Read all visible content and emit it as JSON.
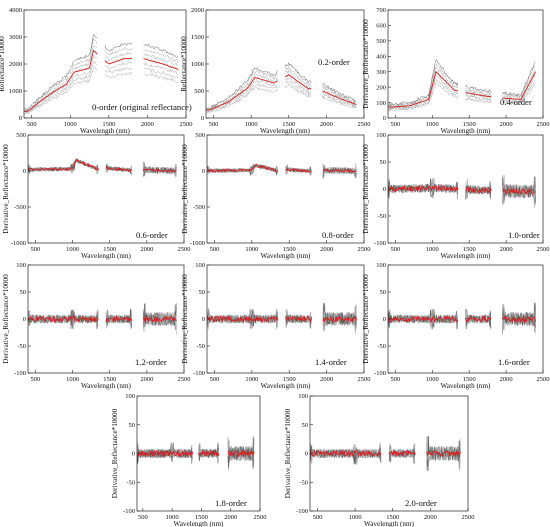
{
  "figure": {
    "panels_count": 11,
    "trace_colors": {
      "samples": "#9a9a9a",
      "mean": "#d62020",
      "dark": "#4a4a4a"
    }
  },
  "chart_data": [
    {
      "type": "line",
      "annotation": "0-order (original reflectance)",
      "xlabel": "Wavelength (nm)",
      "ylabel": "Reflectance*10000",
      "xlim": [
        400,
        2500
      ],
      "ylim": [
        0,
        4000
      ],
      "xticks": [
        "500",
        "1000",
        "1500",
        "2000",
        "2500"
      ],
      "yticks": [
        "0",
        "1000",
        "2000",
        "3000",
        "4000"
      ],
      "segments_nm": [
        [
          400,
          1000
        ],
        [
          1000,
          1350
        ],
        [
          1450,
          1800
        ],
        [
          1950,
          2400
        ]
      ],
      "mean_reflectance": {
        "x": [
          450,
          600,
          800,
          950,
          1050,
          1250,
          1300,
          1500,
          1700,
          1950,
          2200,
          2400
        ],
        "y": [
          250,
          600,
          1000,
          1250,
          1700,
          1850,
          2500,
          2000,
          2200,
          2200,
          2000,
          1800
        ]
      }
    },
    {
      "type": "line",
      "annotation": "0.2-order",
      "xlabel": "Wavelength (nm)",
      "ylabel": "Reflectance*10000",
      "xlim": [
        400,
        2500
      ],
      "ylim": [
        0,
        2000
      ],
      "xticks": [
        "500",
        "1000",
        "1500",
        "2000",
        "2500"
      ],
      "yticks": [
        "0",
        "500",
        "1000",
        "1500",
        "2000"
      ],
      "segments_nm": [
        [
          400,
          1000
        ],
        [
          1000,
          1350
        ],
        [
          1450,
          1800
        ],
        [
          1950,
          2400
        ]
      ],
      "mean_reflectance": {
        "x": [
          450,
          700,
          950,
          1050,
          1300,
          1500,
          1750,
          1950,
          2200,
          2400
        ],
        "y": [
          150,
          300,
          550,
          750,
          650,
          800,
          550,
          500,
          350,
          250
        ]
      }
    },
    {
      "type": "line",
      "annotation": "0.4-order",
      "xlabel": "Wavelength (nm)",
      "ylabel": "Derivative_Reflectance*10000",
      "xlim": [
        400,
        2500
      ],
      "ylim": [
        0,
        700
      ],
      "xticks": [
        "500",
        "1000",
        "1500",
        "2000",
        "2500"
      ],
      "yticks": [
        "0",
        "100",
        "200",
        "300",
        "400",
        "500",
        "600",
        "700"
      ],
      "segments_nm": [
        [
          400,
          1000
        ],
        [
          1000,
          1350
        ],
        [
          1450,
          1800
        ],
        [
          1950,
          2400
        ]
      ],
      "mean_reflectance": {
        "x": [
          450,
          700,
          950,
          1050,
          1300,
          1500,
          1750,
          1950,
          2200,
          2400
        ],
        "y": [
          70,
          80,
          120,
          300,
          180,
          160,
          140,
          130,
          120,
          300
        ]
      }
    },
    {
      "type": "line",
      "annotation": "0.6-order",
      "xlabel": "Wavelength (nm)",
      "ylabel": "Derivative_Reflectance*10000",
      "xlim": [
        400,
        2500
      ],
      "ylim": [
        -1000,
        500
      ],
      "xticks": [
        "500",
        "1000",
        "1500",
        "2000",
        "2500"
      ],
      "yticks": [
        "-1000",
        "-500",
        "0",
        "500"
      ],
      "segments_nm": [
        [
          400,
          1000
        ],
        [
          1000,
          1350
        ],
        [
          1450,
          1800
        ],
        [
          1950,
          2400
        ]
      ],
      "mean_reflectance": {
        "x": [
          450,
          1000,
          1050,
          1350,
          1450,
          1800,
          1950,
          2400
        ],
        "y": [
          20,
          30,
          150,
          20,
          40,
          10,
          20,
          0
        ]
      }
    },
    {
      "type": "line",
      "annotation": "0.8-order",
      "xlabel": "Wavelength (nm)",
      "ylabel": "Derivative_Reflectance*10000",
      "xlim": [
        400,
        2500
      ],
      "ylim": [
        -1000,
        500
      ],
      "xticks": [
        "500",
        "1000",
        "1500",
        "2000",
        "2500"
      ],
      "yticks": [
        "-1000",
        "-500",
        "0",
        "500"
      ],
      "segments_nm": [
        [
          400,
          1000
        ],
        [
          1000,
          1350
        ],
        [
          1450,
          1800
        ],
        [
          1950,
          2400
        ]
      ],
      "mean_reflectance": {
        "x": [
          450,
          1000,
          1050,
          1350,
          1450,
          1800,
          1950,
          2400
        ],
        "y": [
          5,
          10,
          80,
          0,
          20,
          0,
          10,
          0
        ]
      }
    },
    {
      "type": "line",
      "annotation": "1.0-order",
      "xlabel": "Wavelength (nm)",
      "ylabel": "Derivative_Reflectance*10000",
      "xlim": [
        400,
        2500
      ],
      "ylim": [
        -100,
        100
      ],
      "xticks": [
        "500",
        "1000",
        "1500",
        "2000",
        "2500"
      ],
      "yticks": [
        "-100",
        "-50",
        "0",
        "50",
        "100"
      ],
      "segments_nm": [
        [
          400,
          1000
        ],
        [
          1000,
          1350
        ],
        [
          1450,
          1800
        ],
        [
          1950,
          2400
        ]
      ],
      "mean_reflectance": {
        "x": [
          450,
          1000,
          1350,
          1800,
          2400
        ],
        "y": [
          0,
          2,
          0,
          -3,
          -5
        ]
      }
    },
    {
      "type": "line",
      "annotation": "1.2-order",
      "xlabel": "Wavelength (nm)",
      "ylabel": "Derivative_Reflectance*10000",
      "xlim": [
        400,
        2500
      ],
      "ylim": [
        -100,
        100
      ],
      "xticks": [
        "500",
        "1000",
        "1500",
        "2000",
        "2500"
      ],
      "yticks": [
        "-100",
        "-50",
        "0",
        "50",
        "100"
      ],
      "segments_nm": [
        [
          400,
          1000
        ],
        [
          1000,
          1350
        ],
        [
          1450,
          1800
        ],
        [
          1950,
          2400
        ]
      ],
      "mean_reflectance": {
        "x": [
          450,
          1000,
          1350,
          1800,
          2400
        ],
        "y": [
          0,
          0,
          0,
          0,
          0
        ]
      }
    },
    {
      "type": "line",
      "annotation": "1.4-order",
      "xlabel": "Wavelength (nm)",
      "ylabel": "Derivative_Reflectance*10000",
      "xlim": [
        400,
        2500
      ],
      "ylim": [
        -100,
        100
      ],
      "xticks": [
        "500",
        "1000",
        "1500",
        "2000",
        "2500"
      ],
      "yticks": [
        "-100",
        "-50",
        "0",
        "50",
        "100"
      ],
      "segments_nm": [
        [
          400,
          1000
        ],
        [
          1000,
          1350
        ],
        [
          1450,
          1800
        ],
        [
          1950,
          2400
        ]
      ],
      "mean_reflectance": {
        "x": [
          450,
          1000,
          1350,
          1800,
          2400
        ],
        "y": [
          0,
          0,
          0,
          0,
          0
        ]
      }
    },
    {
      "type": "line",
      "annotation": "1.6-order",
      "xlabel": "Wavelength (nm)",
      "ylabel": "Derivative_Reflectance*10000",
      "xlim": [
        400,
        2500
      ],
      "ylim": [
        -100,
        100
      ],
      "xticks": [
        "500",
        "1000",
        "1500",
        "2000",
        "2500"
      ],
      "yticks": [
        "-100",
        "-50",
        "0",
        "50",
        "100"
      ],
      "segments_nm": [
        [
          400,
          1000
        ],
        [
          1000,
          1350
        ],
        [
          1450,
          1800
        ],
        [
          1950,
          2400
        ]
      ],
      "mean_reflectance": {
        "x": [
          450,
          1000,
          1350,
          1800,
          2400
        ],
        "y": [
          0,
          0,
          0,
          0,
          0
        ]
      }
    },
    {
      "type": "line",
      "annotation": "1.8-order",
      "xlabel": "Wavelength (nm)",
      "ylabel": "Derivative_Reflectance*10000",
      "xlim": [
        400,
        2500
      ],
      "ylim": [
        -100,
        100
      ],
      "xticks": [
        "500",
        "1000",
        "1500",
        "2000",
        "2500"
      ],
      "yticks": [
        "-100",
        "-50",
        "0",
        "50",
        "100"
      ],
      "segments_nm": [
        [
          400,
          1000
        ],
        [
          1000,
          1350
        ],
        [
          1450,
          1800
        ],
        [
          1950,
          2400
        ]
      ],
      "mean_reflectance": {
        "x": [
          450,
          1000,
          1350,
          1800,
          2400
        ],
        "y": [
          0,
          0,
          0,
          0,
          0
        ]
      }
    },
    {
      "type": "line",
      "annotation": "2.0-order",
      "xlabel": "Wavelength (nm)",
      "ylabel": "Derivative_Reflectance*10000",
      "xlim": [
        400,
        2500
      ],
      "ylim": [
        -100,
        100
      ],
      "xticks": [
        "500",
        "1000",
        "1500",
        "2000",
        "2500"
      ],
      "yticks": [
        "-100",
        "-50",
        "0",
        "50",
        "100"
      ],
      "segments_nm": [
        [
          400,
          1000
        ],
        [
          1000,
          1350
        ],
        [
          1450,
          1800
        ],
        [
          1950,
          2400
        ]
      ],
      "mean_reflectance": {
        "x": [
          450,
          1000,
          1350,
          1800,
          2400
        ],
        "y": [
          0,
          0,
          0,
          0,
          0
        ]
      }
    }
  ]
}
